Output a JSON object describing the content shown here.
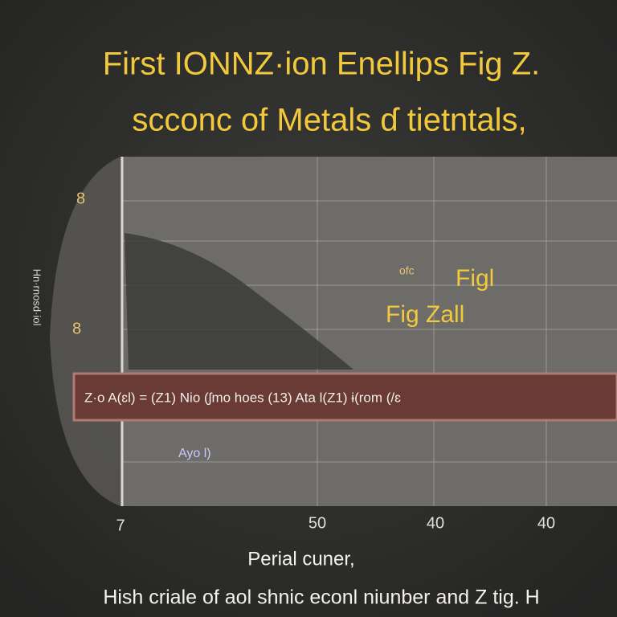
{
  "title": {
    "line1": "First IONNZ·ion Enellips Fig  Z.",
    "line2": "scconc of Metals ɗ tietntals,"
  },
  "y_axis_label": "Hn·rnosd·iol",
  "y_tick_labels": [
    "8",
    "8"
  ],
  "x_tick_labels": [
    "7",
    "50",
    "40",
    "40"
  ],
  "annotations": {
    "small": "ofc",
    "fig1": "Figl",
    "fig2": "Fig  Zall",
    "note": "Ayo l)"
  },
  "band_text": "Z·o  A(ɛl) = (Z1)  Nio  (ʃmo  hoes  (13)  Ata  l(Z1)  ɨ(rom  (/ɛ",
  "footer": {
    "line1": "Perial cuner,",
    "line2": "Hish criale of aol shnic  econl niunber and  Z tig. H"
  }
}
